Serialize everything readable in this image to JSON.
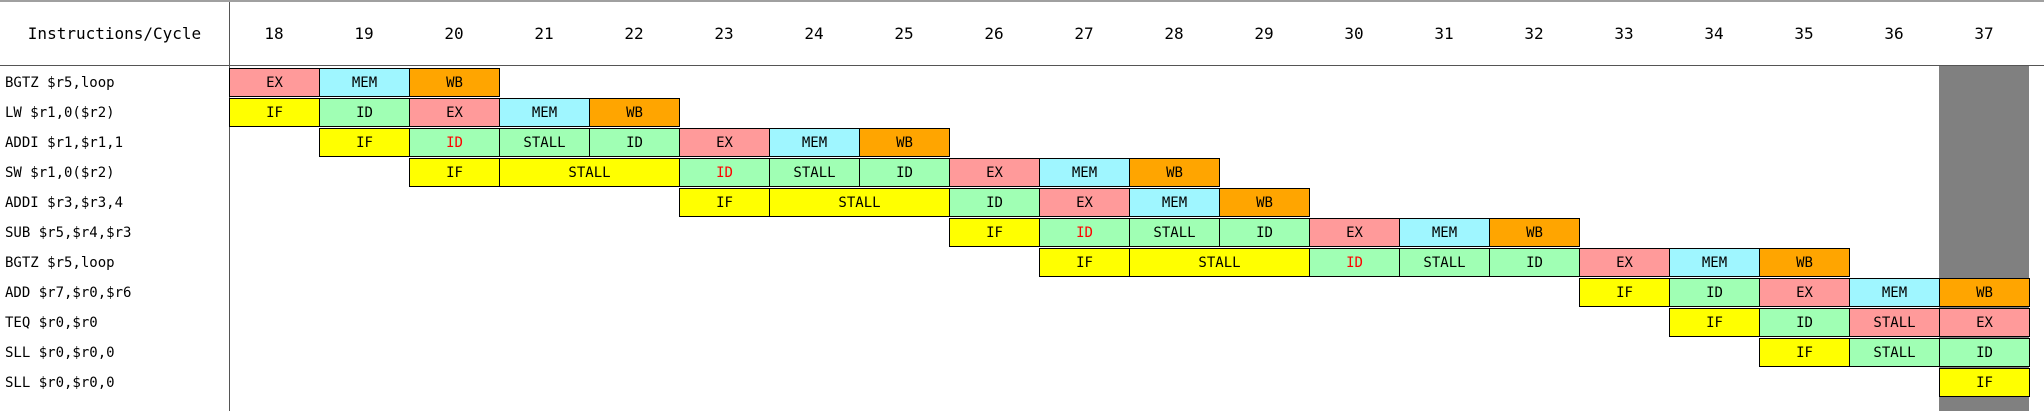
{
  "header": {
    "label": "Instructions/Cycle",
    "cycles": [
      "18",
      "19",
      "20",
      "21",
      "22",
      "23",
      "24",
      "25",
      "26",
      "27",
      "28",
      "29",
      "30",
      "31",
      "32",
      "33",
      "34",
      "35",
      "36",
      "37"
    ]
  },
  "rows": [
    {
      "instruction": "BGTZ $r5,loop",
      "cells": [
        {
          "text": "EX",
          "color": "#ff9a9a"
        },
        {
          "text": "MEM",
          "color": "#9ff6ff"
        },
        {
          "text": "WB",
          "color": "#ffa500"
        }
      ]
    },
    {
      "instruction": "LW $r1,0($r2)",
      "cells": [
        {
          "text": "IF",
          "color": "#ffff00"
        },
        {
          "text": "ID",
          "color": "#a0ffb4"
        },
        {
          "text": "EX",
          "color": "#ff9a9a"
        },
        {
          "text": "MEM",
          "color": "#9ff6ff"
        },
        {
          "text": "WB",
          "color": "#ffa500"
        }
      ]
    },
    {
      "instruction": "ADDI $r1,$r1,1",
      "cells": [
        null,
        {
          "text": "IF",
          "color": "#ffff00"
        },
        {
          "text": "ID",
          "color": "#a0ffb4",
          "text_color": "#ff0000"
        },
        {
          "text": "STALL",
          "color": "#a0ffb4"
        },
        {
          "text": "ID",
          "color": "#a0ffb4"
        },
        {
          "text": "EX",
          "color": "#ff9a9a"
        },
        {
          "text": "MEM",
          "color": "#9ff6ff"
        },
        {
          "text": "WB",
          "color": "#ffa500"
        }
      ]
    },
    {
      "instruction": "SW $r1,0($r2)",
      "cells": [
        null,
        null,
        {
          "text": "IF",
          "color": "#ffff00"
        },
        {
          "text": "STALL",
          "color": "#ffff00",
          "span": 2
        },
        null,
        {
          "text": "ID",
          "color": "#a0ffb4",
          "text_color": "#ff0000"
        },
        {
          "text": "STALL",
          "color": "#a0ffb4"
        },
        {
          "text": "ID",
          "color": "#a0ffb4"
        },
        {
          "text": "EX",
          "color": "#ff9a9a"
        },
        {
          "text": "MEM",
          "color": "#9ff6ff"
        },
        {
          "text": "WB",
          "color": "#ffa500"
        }
      ]
    },
    {
      "instruction": "ADDI $r3,$r3,4",
      "cells": [
        null,
        null,
        null,
        null,
        null,
        {
          "text": "IF",
          "color": "#ffff00"
        },
        {
          "text": "STALL",
          "color": "#ffff00",
          "span": 2
        },
        null,
        {
          "text": "ID",
          "color": "#a0ffb4"
        },
        {
          "text": "EX",
          "color": "#ff9a9a"
        },
        {
          "text": "MEM",
          "color": "#9ff6ff"
        },
        {
          "text": "WB",
          "color": "#ffa500"
        }
      ]
    },
    {
      "instruction": "SUB $r5,$r4,$r3",
      "cells": [
        null,
        null,
        null,
        null,
        null,
        null,
        null,
        null,
        {
          "text": "IF",
          "color": "#ffff00"
        },
        {
          "text": "ID",
          "color": "#a0ffb4",
          "text_color": "#ff0000"
        },
        {
          "text": "STALL",
          "color": "#a0ffb4"
        },
        {
          "text": "ID",
          "color": "#a0ffb4"
        },
        {
          "text": "EX",
          "color": "#ff9a9a"
        },
        {
          "text": "MEM",
          "color": "#9ff6ff"
        },
        {
          "text": "WB",
          "color": "#ffa500"
        }
      ]
    },
    {
      "instruction": "BGTZ $r5,loop",
      "cells": [
        null,
        null,
        null,
        null,
        null,
        null,
        null,
        null,
        null,
        {
          "text": "IF",
          "color": "#ffff00"
        },
        {
          "text": "STALL",
          "color": "#ffff00",
          "span": 2
        },
        null,
        {
          "text": "ID",
          "color": "#a0ffb4",
          "text_color": "#ff0000"
        },
        {
          "text": "STALL",
          "color": "#a0ffb4"
        },
        {
          "text": "ID",
          "color": "#a0ffb4"
        },
        {
          "text": "EX",
          "color": "#ff9a9a"
        },
        {
          "text": "MEM",
          "color": "#9ff6ff"
        },
        {
          "text": "WB",
          "color": "#ffa500"
        }
      ]
    },
    {
      "instruction": "ADD $r7,$r0,$r6",
      "cells": [
        null,
        null,
        null,
        null,
        null,
        null,
        null,
        null,
        null,
        null,
        null,
        null,
        null,
        null,
        null,
        {
          "text": "IF",
          "color": "#ffff00"
        },
        {
          "text": "ID",
          "color": "#a0ffb4"
        },
        {
          "text": "EX",
          "color": "#ff9a9a"
        },
        {
          "text": "MEM",
          "color": "#9ff6ff"
        },
        {
          "text": "WB",
          "color": "#ffa500"
        }
      ]
    },
    {
      "instruction": "TEQ $r0,$r0",
      "cells": [
        null,
        null,
        null,
        null,
        null,
        null,
        null,
        null,
        null,
        null,
        null,
        null,
        null,
        null,
        null,
        null,
        {
          "text": "IF",
          "color": "#ffff00"
        },
        {
          "text": "ID",
          "color": "#a0ffb4"
        },
        {
          "text": "STALL",
          "color": "#ff9a9a"
        },
        {
          "text": "EX",
          "color": "#ff9a9a"
        }
      ]
    },
    {
      "instruction": "SLL $r0,$r0,0",
      "cells": [
        null,
        null,
        null,
        null,
        null,
        null,
        null,
        null,
        null,
        null,
        null,
        null,
        null,
        null,
        null,
        null,
        null,
        {
          "text": "IF",
          "color": "#ffff00"
        },
        {
          "text": "STALL",
          "color": "#a0ffb4"
        },
        {
          "text": "ID",
          "color": "#a0ffb4"
        }
      ]
    },
    {
      "instruction": "SLL $r0,$r0,0",
      "cells": [
        null,
        null,
        null,
        null,
        null,
        null,
        null,
        null,
        null,
        null,
        null,
        null,
        null,
        null,
        null,
        null,
        null,
        null,
        null,
        {
          "text": "IF",
          "color": "#ffff00"
        }
      ]
    }
  ]
}
